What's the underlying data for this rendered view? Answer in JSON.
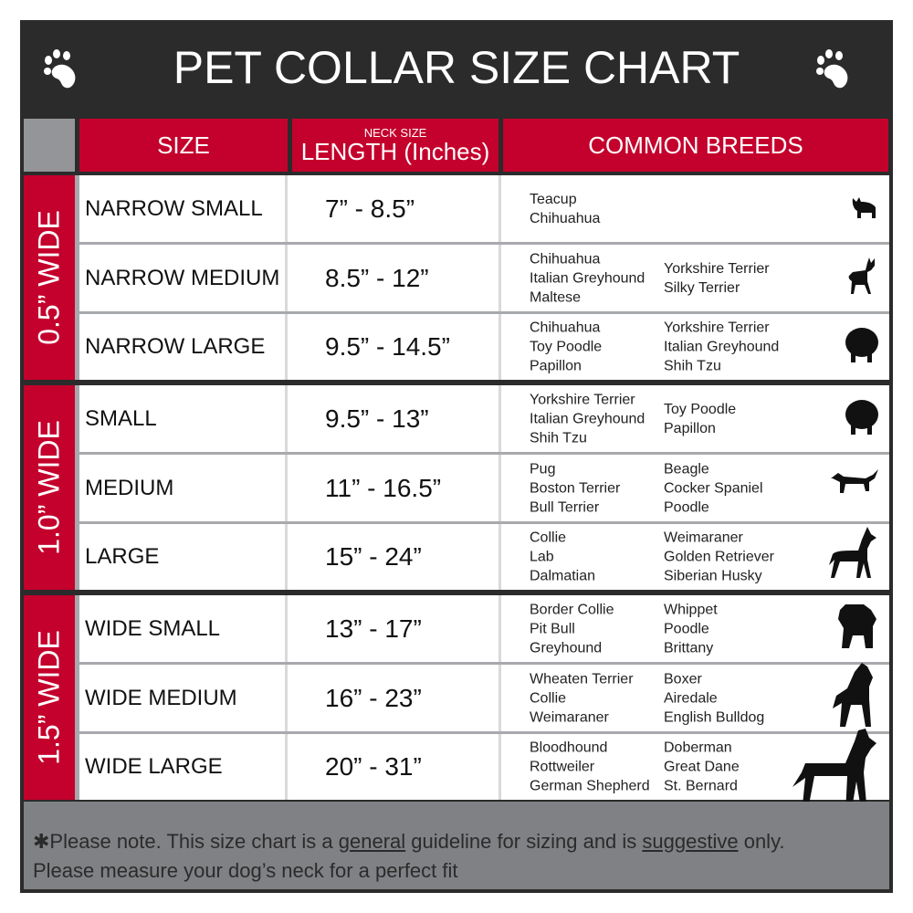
{
  "title": "PET COLLAR SIZE CHART",
  "colors": {
    "header": "#2b2b2b",
    "accent": "#c4002c",
    "footer": "#808184"
  },
  "columns": {
    "size": "SIZE",
    "length_top": "NECK SIZE",
    "length": "LENGTH (Inches)",
    "breeds": "COMMON BREEDS"
  },
  "groups": [
    {
      "width": "0.5” WIDE",
      "rows": [
        {
          "size": "NARROW SMALL",
          "length": "7” - 8.5”",
          "breeds_a": [
            "Teacup",
            "Chihuahua"
          ],
          "breeds_b": [],
          "icon": "yorkie-silhouette-icon"
        },
        {
          "size": "NARROW MEDIUM",
          "length": "8.5” - 12”",
          "breeds_a": [
            "Chihuahua",
            "Italian Greyhound",
            "Maltese"
          ],
          "breeds_b": [
            "Yorkshire Terrier",
            "Silky Terrier"
          ],
          "icon": "chihuahua-silhouette-icon"
        },
        {
          "size": "NARROW LARGE",
          "length": "9.5” - 14.5”",
          "breeds_a": [
            "Chihuahua",
            "Toy Poodle",
            "Papillon"
          ],
          "breeds_b": [
            "Yorkshire Terrier",
            "Italian Greyhound",
            "Shih Tzu"
          ],
          "icon": "pomeranian-silhouette-icon"
        }
      ]
    },
    {
      "width": "1.0” WIDE",
      "rows": [
        {
          "size": "SMALL",
          "length": "9.5” - 13”",
          "breeds_a": [
            "Yorkshire Terrier",
            "Italian Greyhound",
            "Shih Tzu"
          ],
          "breeds_b": [
            "Toy Poodle",
            "Papillon"
          ],
          "icon": "pomeranian-silhouette-icon"
        },
        {
          "size": "MEDIUM",
          "length": "11” - 16.5”",
          "breeds_a": [
            "Pug",
            "Boston Terrier",
            "Bull Terrier"
          ],
          "breeds_b": [
            "Beagle",
            "Cocker Spaniel",
            "Poodle"
          ],
          "icon": "dachshund-silhouette-icon"
        },
        {
          "size": "LARGE",
          "length": "15” - 24”",
          "breeds_a": [
            "Collie",
            "Lab",
            "Dalmatian"
          ],
          "breeds_b": [
            "Weimaraner",
            "Golden Retriever",
            "Siberian Husky"
          ],
          "icon": "shepherd-silhouette-icon"
        }
      ]
    },
    {
      "width": "1.5” WIDE",
      "rows": [
        {
          "size": "WIDE SMALL",
          "length": "13” - 17”",
          "breeds_a": [
            "Border Collie",
            "Pit Bull",
            "Greyhound"
          ],
          "breeds_b": [
            "Whippet",
            "Poodle",
            "Brittany"
          ],
          "icon": "bulldog-silhouette-icon"
        },
        {
          "size": "WIDE MEDIUM",
          "length": "16” - 23”",
          "breeds_a": [
            "Wheaten Terrier",
            "Collie",
            "Weimaraner"
          ],
          "breeds_b": [
            "Boxer",
            "Airedale",
            "English Bulldog"
          ],
          "icon": "pitbull-silhouette-icon"
        },
        {
          "size": "WIDE LARGE",
          "length": "20” - 31”",
          "breeds_a": [
            "Bloodhound",
            "Rottweiler",
            "German Shepherd"
          ],
          "breeds_b": [
            "Doberman",
            "Great Dane",
            "St. Bernard"
          ],
          "icon": "doberman-silhouette-icon"
        }
      ]
    }
  ],
  "footer": {
    "p1": "✱Please note. This size chart is a ",
    "u1": "general",
    "p2": " guideline for sizing and is ",
    "u2": "suggestive",
    "p3": " only.",
    "line2": "Please measure your dog’s neck for a perfect fit"
  }
}
